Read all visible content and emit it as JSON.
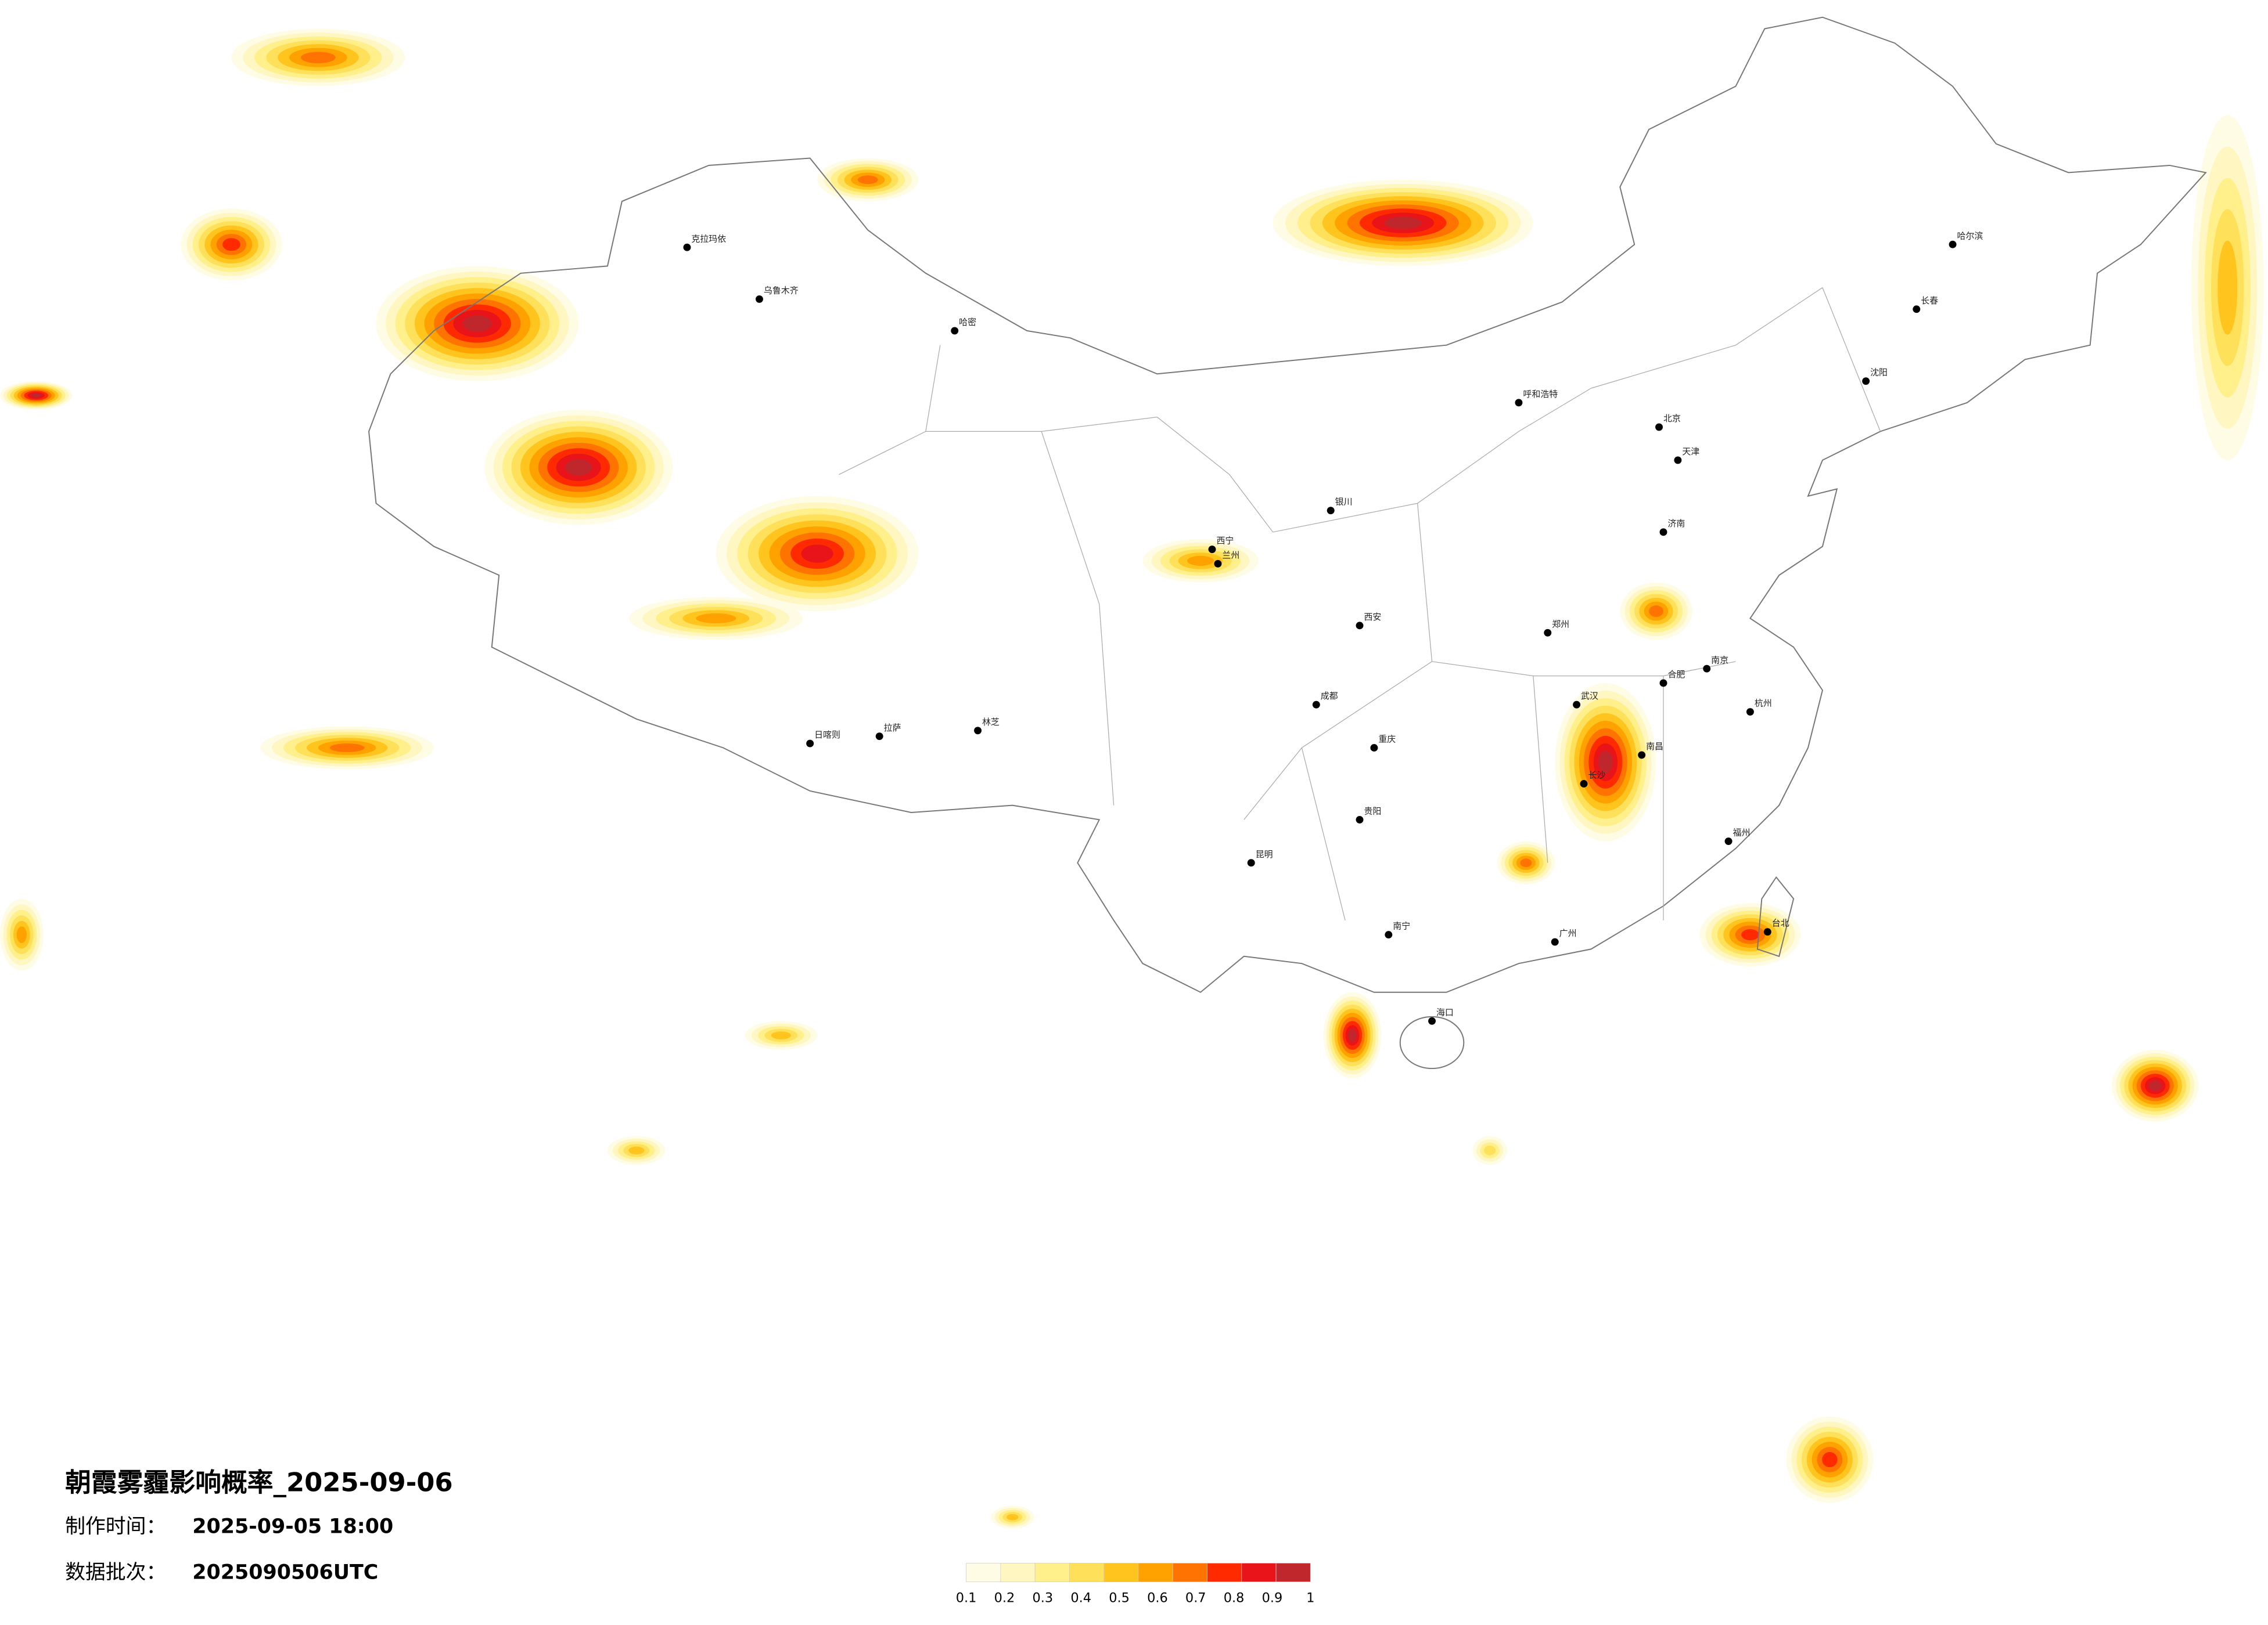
{
  "header": {
    "title": "朝霞雾霾影响概率_2025-09-06",
    "made_label": "制作时间：",
    "made_time": "2025-09-05 18:00",
    "batch_label": "数据批次：",
    "batch": "2025090506UTC"
  },
  "legend": {
    "colors": [
      "#fffce6",
      "#fff6c2",
      "#fff08c",
      "#ffe05a",
      "#ffc51e",
      "#ffa200",
      "#ff7400",
      "#ff2a00",
      "#e8141a",
      "#c0272d"
    ],
    "ticks": [
      0.1,
      0.2,
      0.3,
      0.4,
      0.5,
      0.6,
      0.7,
      0.8,
      0.9,
      1
    ]
  },
  "cities": [
    "克拉玛依",
    "乌鲁木齐",
    "哈密",
    "拉萨",
    "日喀则",
    "林芝",
    "西宁",
    "兰州",
    "银川",
    "呼和浩特",
    "北京",
    "天津",
    "哈尔滨",
    "长春",
    "沈阳",
    "济南",
    "郑州",
    "西安",
    "成都",
    "重庆",
    "武汉",
    "长沙",
    "南京",
    "合肥",
    "杭州",
    "南昌",
    "福州",
    "贵阳",
    "昆明",
    "南宁",
    "广州",
    "海口",
    "台北"
  ]
}
